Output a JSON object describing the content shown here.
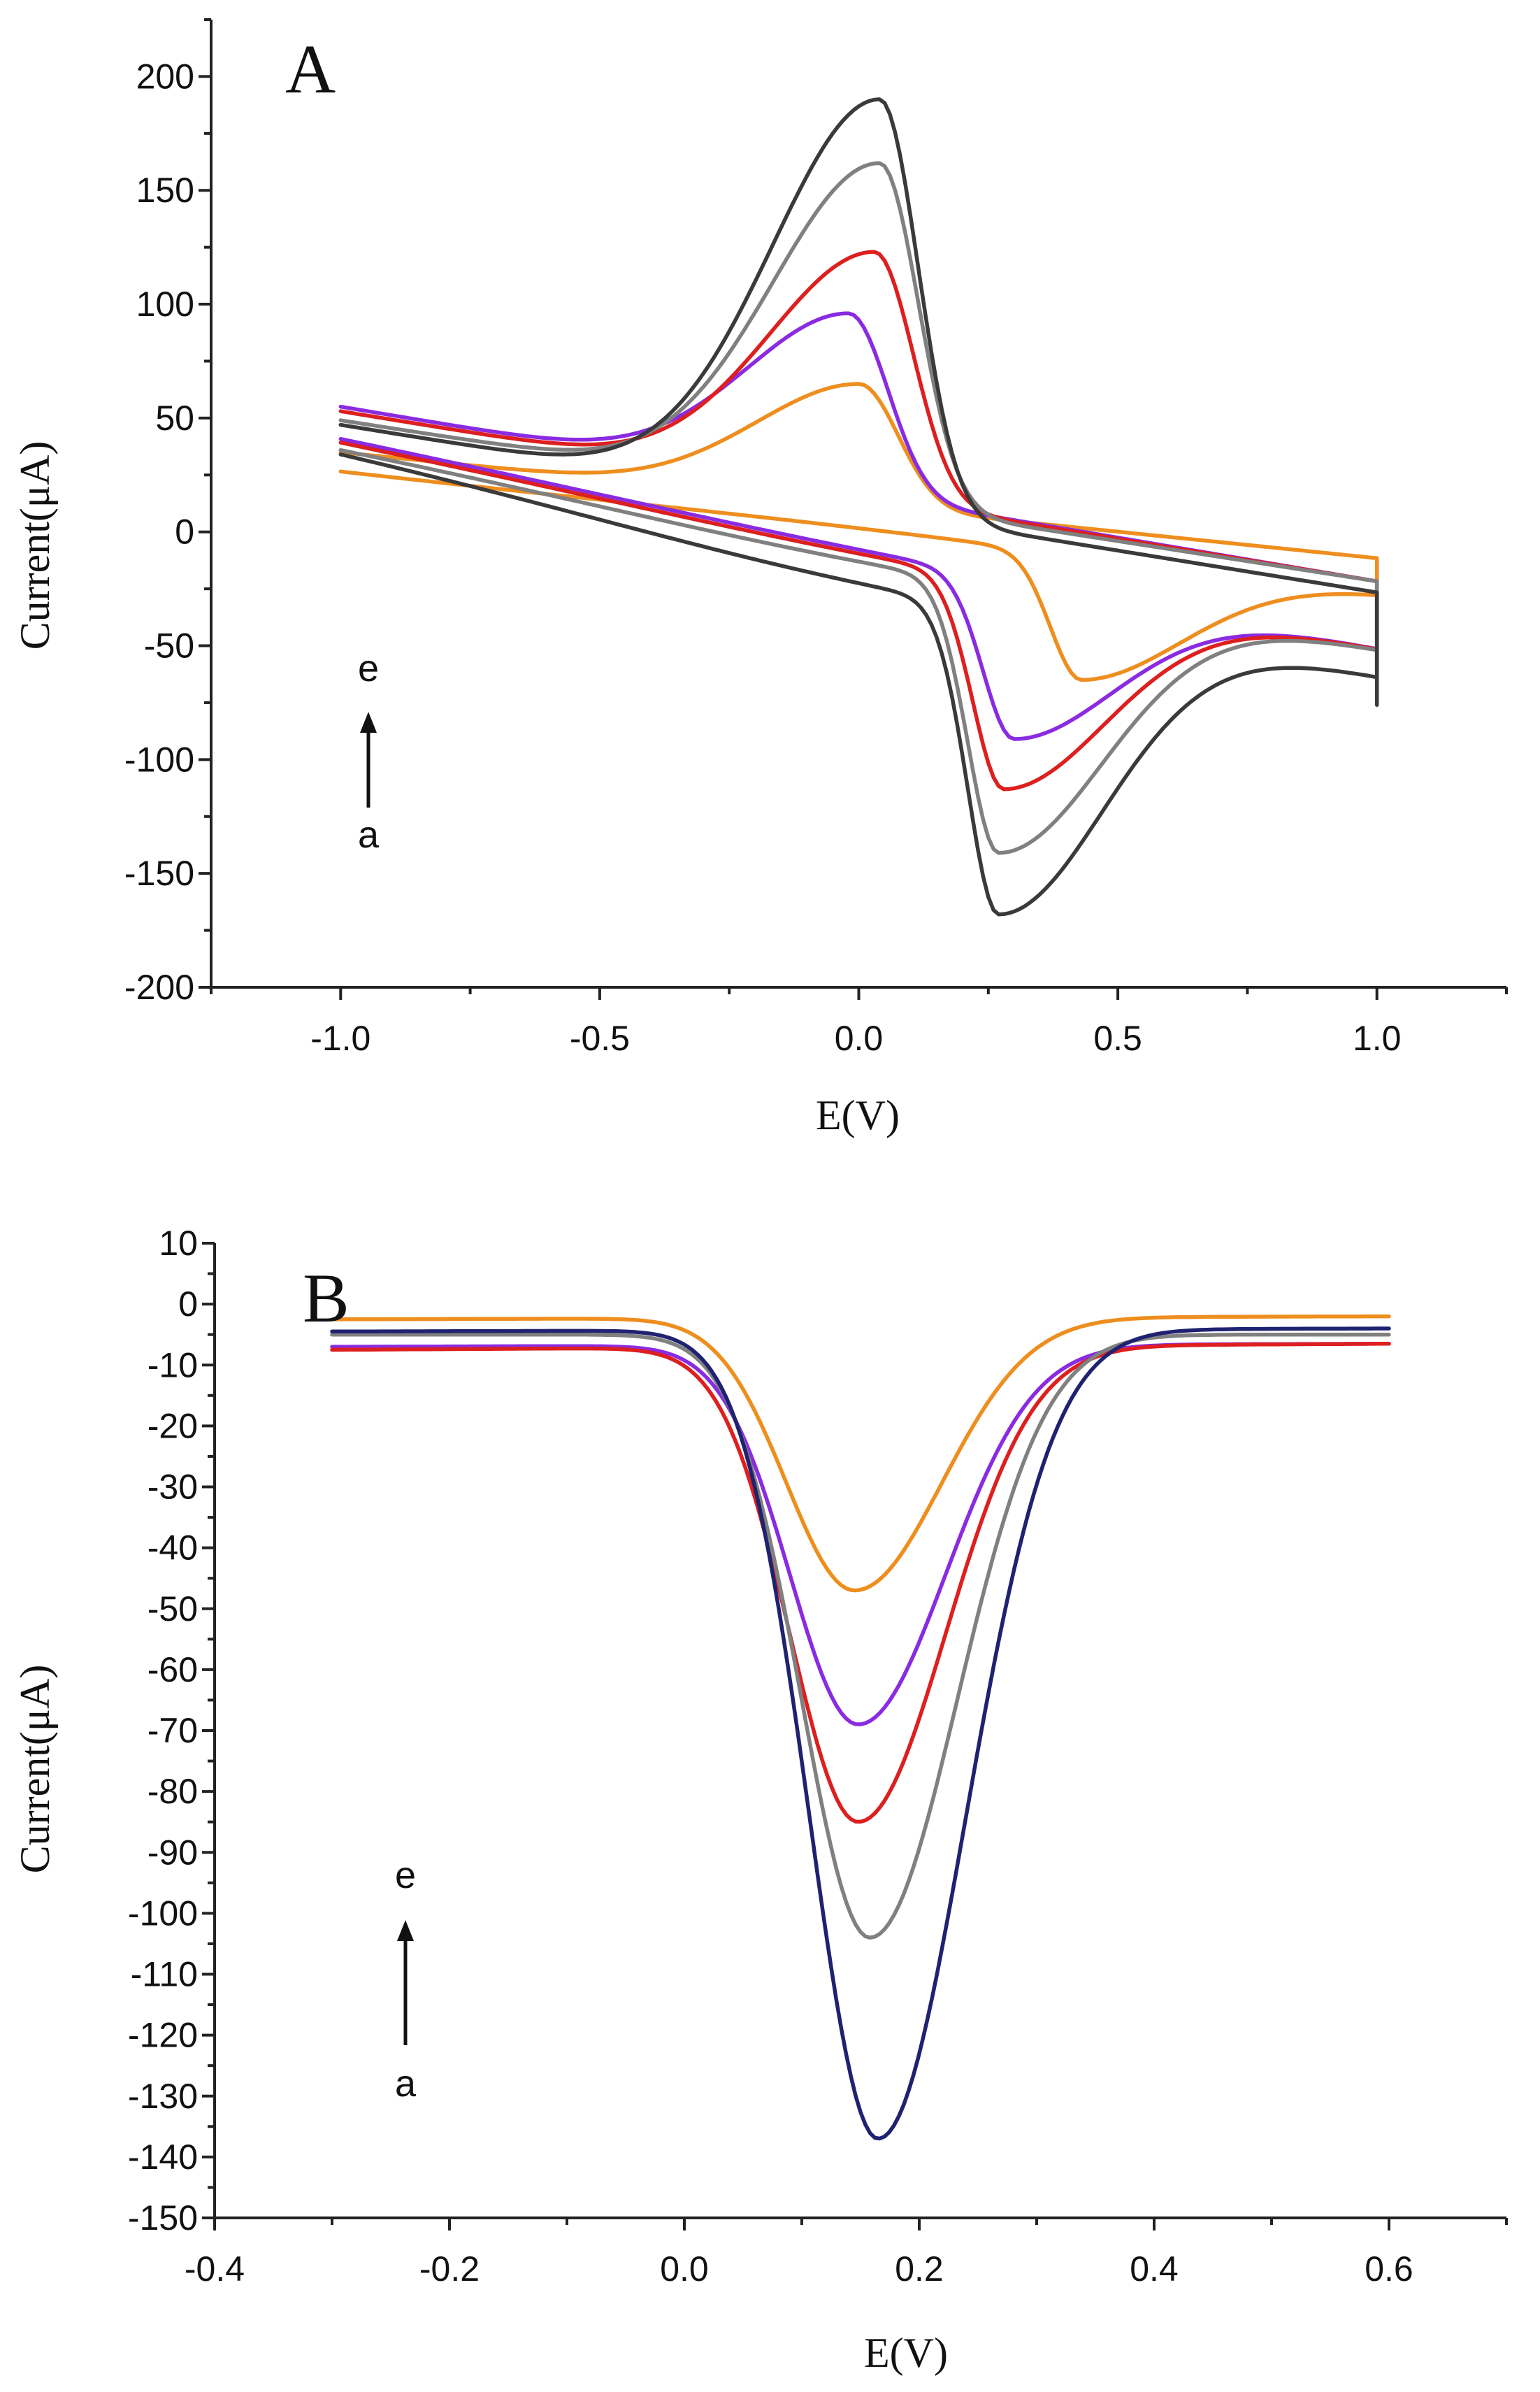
{
  "chart_data": [
    {
      "type": "line",
      "panel_label": "A",
      "xlabel": "E(V)",
      "ylabel": "Current(μA)",
      "xlim": [
        -1.25,
        1.25
      ],
      "ylim": [
        -200,
        225
      ],
      "x_ticks": [
        -1.0,
        -0.5,
        0.0,
        0.5,
        1.0
      ],
      "x_tick_labels": [
        "-1.0",
        "-0.5",
        "0.0",
        "0.5",
        "1.0"
      ],
      "y_ticks": [
        -200,
        -150,
        -100,
        -50,
        0,
        50,
        100,
        150,
        200
      ],
      "y_tick_labels": [
        "-200",
        "-150",
        "-100",
        "-50",
        "0",
        "50",
        "100",
        "150",
        "200"
      ],
      "annotation": {
        "top": "e",
        "bottom": "a",
        "direction": "increasing"
      },
      "grid": false,
      "series": [
        {
          "color": "#ee8e1e",
          "peak_x": 0.0,
          "peak_y": 65,
          "valley_x": 0.43,
          "valley_y": -65,
          "start_y": 35,
          "end_y": -33,
          "base_mid": 2
        },
        {
          "color": "#8a2be2",
          "peak_x": -0.02,
          "peak_y": 96,
          "valley_x": 0.3,
          "valley_y": -91,
          "start_y": 55,
          "end_y": -62,
          "base_mid": -3
        },
        {
          "color": "#dd1f1f",
          "peak_x": 0.03,
          "peak_y": 123,
          "valley_x": 0.28,
          "valley_y": -113,
          "start_y": 53,
          "end_y": -62,
          "base_mid": -4
        },
        {
          "color": "#808080",
          "peak_x": 0.04,
          "peak_y": 162,
          "valley_x": 0.27,
          "valley_y": -141,
          "start_y": 49,
          "end_y": -62,
          "base_mid": -6
        },
        {
          "color": "#3a3a3a",
          "peak_x": 0.04,
          "peak_y": 190,
          "valley_x": 0.27,
          "valley_y": -168,
          "start_y": 47,
          "end_y": -76,
          "base_mid": -9
        }
      ]
    },
    {
      "type": "line",
      "panel_label": "B",
      "xlabel": "E(V)",
      "ylabel": "Current(μA)",
      "xlim": [
        -0.4,
        0.7
      ],
      "ylim": [
        -150,
        10
      ],
      "x_ticks": [
        -0.4,
        -0.2,
        0.0,
        0.2,
        0.4,
        0.6
      ],
      "x_tick_labels": [
        "-0.4",
        "-0.2",
        "0.0",
        "0.2",
        "0.4",
        "0.6"
      ],
      "y_ticks": [
        10,
        0,
        -10,
        -20,
        -30,
        -40,
        -50,
        -60,
        -70,
        -80,
        -90,
        -100,
        -110,
        -120,
        -130,
        -140,
        -150
      ],
      "y_tick_labels": [
        "10",
        "0",
        "-10",
        "-20",
        "-30",
        "-40",
        "-50",
        "-60",
        "-70",
        "-80",
        "-90",
        "-100",
        "-110",
        "-120",
        "-130",
        "-140",
        "-150"
      ],
      "annotation": {
        "top": "e",
        "bottom": "a",
        "direction": "increasing"
      },
      "grid": false,
      "series": [
        {
          "color": "#ee8e1e",
          "peak_x": 0.145,
          "peak_y": -47,
          "start_y": -2.5,
          "end_y": -2
        },
        {
          "color": "#8a2be2",
          "peak_x": 0.148,
          "peak_y": -69,
          "start_y": -7,
          "end_y": -6.5
        },
        {
          "color": "#dd1f1f",
          "peak_x": 0.148,
          "peak_y": -85,
          "start_y": -7.5,
          "end_y": -6.5
        },
        {
          "color": "#808080",
          "peak_x": 0.158,
          "peak_y": -104,
          "start_y": -5,
          "end_y": -5
        },
        {
          "color": "#1f2270",
          "peak_x": 0.165,
          "peak_y": -137,
          "start_y": -4.5,
          "end_y": -4
        }
      ]
    }
  ]
}
